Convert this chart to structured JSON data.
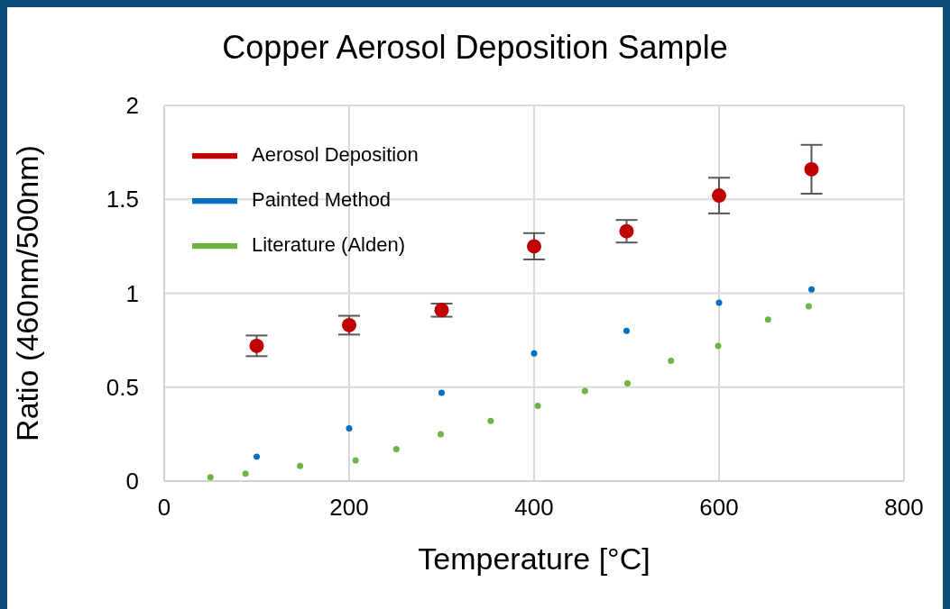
{
  "chart_data": {
    "type": "scatter",
    "title": "Copper Aerosol Deposition Sample",
    "xlabel": "Temperature [°C]",
    "ylabel": "Ratio (460nm/500nm)",
    "xlim": [
      0,
      800
    ],
    "xticks": [
      0,
      200,
      400,
      600,
      800
    ],
    "ylim": [
      0,
      2
    ],
    "yticks": [
      0,
      0.5,
      1,
      1.5,
      2
    ],
    "grid": true,
    "legend": "top left",
    "marker": "circle",
    "series": [
      {
        "name": "Aerosol Deposition",
        "color": "#c00000",
        "x": [
          100,
          200,
          300,
          400,
          500,
          600,
          700
        ],
        "values": [
          0.72,
          0.83,
          0.91,
          1.25,
          1.33,
          1.52,
          1.66
        ],
        "errors": [
          0.055,
          0.05,
          0.035,
          0.07,
          0.06,
          0.095,
          0.13
        ]
      },
      {
        "name": "Painted Method",
        "color": "#0070c0",
        "x": [
          100,
          200,
          300,
          400,
          500,
          600,
          700
        ],
        "values": [
          0.13,
          0.28,
          0.47,
          0.68,
          0.8,
          0.95,
          1.02
        ]
      },
      {
        "name": "Literature (Alden)",
        "color": "#70b345",
        "x": [
          50,
          88,
          147,
          207,
          251,
          299,
          353,
          404,
          455,
          501,
          548,
          599,
          653,
          697
        ],
        "values": [
          0.02,
          0.04,
          0.08,
          0.11,
          0.17,
          0.25,
          0.32,
          0.4,
          0.48,
          0.52,
          0.64,
          0.72,
          0.86,
          0.93
        ]
      }
    ]
  }
}
